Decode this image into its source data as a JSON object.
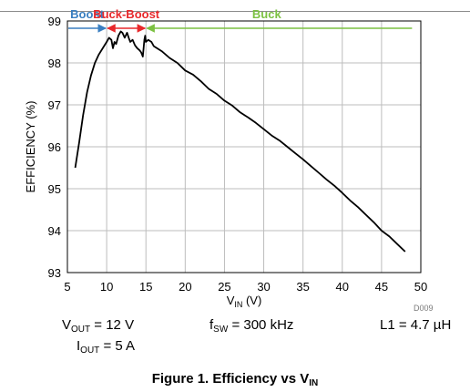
{
  "chart_data": {
    "type": "line",
    "ylabel": "EFFICIENCY (%)",
    "xlabel": {
      "main": "V",
      "sub": "IN",
      "unit": "(V)"
    },
    "xlim": [
      5,
      50
    ],
    "ylim": [
      93,
      99
    ],
    "xticks": [
      5,
      10,
      15,
      20,
      25,
      30,
      35,
      40,
      45,
      50
    ],
    "yticks": [
      93,
      94,
      95,
      96,
      97,
      98,
      99
    ],
    "grid": true,
    "series": [
      {
        "color": "#000000",
        "x": [
          6,
          6.5,
          7,
          7.5,
          8,
          8.5,
          9,
          9.5,
          10,
          10.3,
          10.6,
          10.8,
          11,
          11.2,
          11.5,
          11.8,
          12,
          12.3,
          12.6,
          12.8,
          13,
          13.3,
          13.6,
          13.9,
          14.2,
          14.4,
          14.6,
          14.8,
          14.9,
          15,
          15.3,
          15.7,
          16,
          17,
          18,
          19,
          20,
          21,
          22,
          23,
          24,
          25,
          26,
          27,
          28,
          29,
          30,
          31,
          32,
          33,
          34,
          35,
          36,
          37,
          38,
          39,
          40,
          41,
          42,
          43,
          44,
          45,
          46,
          47,
          48
        ],
        "y": [
          95.5,
          96.1,
          96.75,
          97.3,
          97.7,
          98.0,
          98.2,
          98.35,
          98.5,
          98.6,
          98.55,
          98.35,
          98.5,
          98.45,
          98.65,
          98.75,
          98.72,
          98.6,
          98.72,
          98.6,
          98.5,
          98.55,
          98.42,
          98.35,
          98.3,
          98.25,
          98.15,
          98.55,
          98.65,
          98.5,
          98.55,
          98.5,
          98.4,
          98.28,
          98.12,
          98.0,
          97.82,
          97.72,
          97.56,
          97.38,
          97.26,
          97.1,
          96.98,
          96.82,
          96.7,
          96.57,
          96.42,
          96.27,
          96.15,
          96.0,
          95.85,
          95.7,
          95.54,
          95.38,
          95.22,
          95.07,
          94.9,
          94.72,
          94.56,
          94.38,
          94.2,
          94.0,
          93.86,
          93.68,
          93.5
        ]
      }
    ],
    "regions": [
      {
        "label": "Boost",
        "from": 5,
        "to": 10,
        "color": "#3a7fc1"
      },
      {
        "label": "Buck-Boost",
        "from": 10,
        "to": 15,
        "color": "#e8282b"
      },
      {
        "label": "Buck",
        "from": 15,
        "to": 49,
        "color": "#7cc142"
      }
    ]
  },
  "chart_id": "D009",
  "notes": {
    "vout": {
      "main": "V",
      "sub": "OUT",
      "rest": " = 12 V"
    },
    "iout": {
      "main": "I",
      "sub": "OUT",
      "rest": " = 5 A"
    },
    "fsw": {
      "main": "f",
      "sub": "SW",
      "rest": " = 300 kHz"
    },
    "inductor": "L1 = 4.7 µH"
  },
  "caption": {
    "main": "Figure 1. Efficiency vs V",
    "sub": "IN"
  }
}
